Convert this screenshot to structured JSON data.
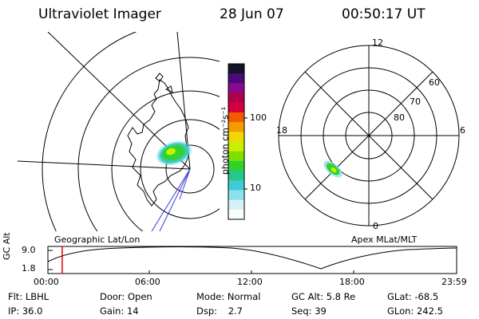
{
  "header": {
    "title": "Ultraviolet Imager",
    "date": "28 Jun 07",
    "time": "00:50:17 UT"
  },
  "colorbar": {
    "unit_label": "photon cm⁻²s⁻¹",
    "tick_high": "100",
    "tick_low": "10",
    "colors": [
      "#141428",
      "#4b0a7a",
      "#8a0a8a",
      "#b0004a",
      "#d6003c",
      "#f25a00",
      "#f59b00",
      "#f2d600",
      "#c9f000",
      "#7fe000",
      "#2ed12e",
      "#26c98c",
      "#3ecdd6",
      "#8ee0ee",
      "#d4f2f7",
      "#f8fdfe"
    ]
  },
  "geo_panel": {
    "label": "Geographic Lat/Lon"
  },
  "apex_panel": {
    "label": "Apex MLat/MLT",
    "mlt_labels": {
      "top": "12",
      "left": "18",
      "right": "6",
      "bottom": "0"
    },
    "lat_labels": [
      "60",
      "70",
      "80"
    ]
  },
  "timeline": {
    "ylabel": "GC Alt",
    "y_top": "9.0",
    "y_bottom": "1.8",
    "x_labels": [
      "00:00",
      "06:00",
      "12:00",
      "18:00",
      "23:59"
    ],
    "marker_time_hours": 0.84
  },
  "info": {
    "row1": [
      {
        "label": "Flt:",
        "value": "LBHL"
      },
      {
        "label": "Door:",
        "value": "Open"
      },
      {
        "label": "Mode:",
        "value": "Normal"
      },
      {
        "label": "GC Alt:",
        "value": "5.8 Re"
      },
      {
        "label": "GLat:",
        "value": "-68.5"
      }
    ],
    "row2": [
      {
        "label": "IP:",
        "value": "36.0"
      },
      {
        "label": "Gain:",
        "value": "14"
      },
      {
        "label": "Dsp:",
        "value": "2.7"
      },
      {
        "label": "Seq:",
        "value": "39"
      },
      {
        "label": "GLon:",
        "value": "242.5"
      }
    ]
  }
}
